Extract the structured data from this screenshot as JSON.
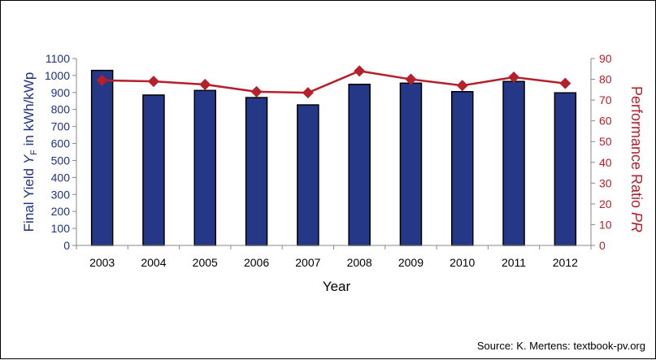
{
  "chart_data": {
    "type": "bar+line",
    "categories": [
      "2003",
      "2004",
      "2005",
      "2006",
      "2007",
      "2008",
      "2009",
      "2010",
      "2011",
      "2012"
    ],
    "series": [
      {
        "axis": "left",
        "type": "bar",
        "values": [
          1030,
          885,
          912,
          870,
          827,
          948,
          955,
          905,
          965,
          898
        ],
        "color": "#253787"
      },
      {
        "axis": "right",
        "type": "line",
        "values": [
          79.5,
          79.0,
          77.5,
          74.0,
          73.5,
          84.0,
          80.0,
          77.0,
          81.0,
          78.0
        ],
        "color": "#b5202a"
      }
    ],
    "y_left": {
      "label_main": "Final Yield ",
      "label_var": "Y",
      "label_sub": "F",
      "label_tail": " in kWh/kWp",
      "ylim": [
        0,
        1100
      ],
      "ticks": [
        "0",
        "100",
        "200",
        "300",
        "400",
        "500",
        "600",
        "700",
        "800",
        "900",
        "1000",
        "1100"
      ]
    },
    "y_right": {
      "label_main": "Performance Ratio ",
      "label_var": "PR",
      "ylim": [
        0,
        90
      ],
      "ticks": [
        "0",
        "10",
        "20",
        "30",
        "40",
        "50",
        "60",
        "70",
        "80",
        "90"
      ]
    },
    "xlabel": "Year",
    "grid": false,
    "colors": {
      "left_axis": "#1f3281",
      "right_axis": "#b5202a",
      "bar_fill": "#253787",
      "line": "#b5202a"
    }
  },
  "source": "Source: K. Mertens: textbook-pv.org"
}
